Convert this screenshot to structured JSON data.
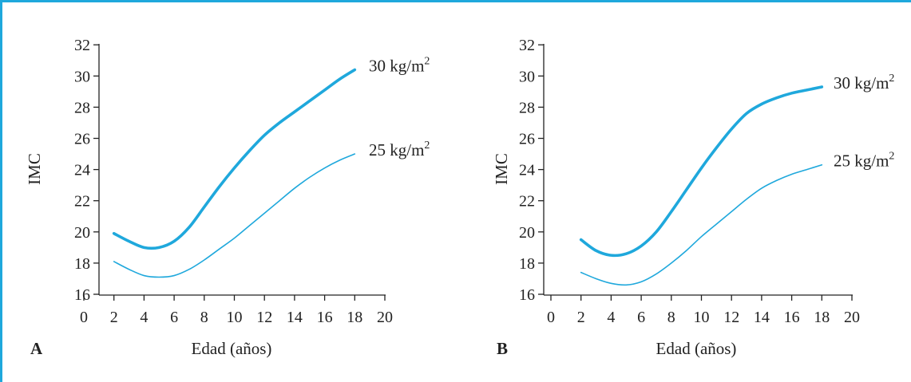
{
  "colors": {
    "frame": "#1fa8dc",
    "series": "#1fa8dc",
    "text": "#222222"
  },
  "chart_data": [
    {
      "type": "line",
      "panel": "A",
      "xlabel": "Edad (años)",
      "ylabel": "IMC",
      "xlim": [
        0,
        20
      ],
      "ylim": [
        16,
        32
      ],
      "xticks": [
        "0",
        "2",
        "4",
        "6",
        "8",
        "10",
        "12",
        "14",
        "16",
        "18",
        "20"
      ],
      "yticks": [
        "16",
        "18",
        "20",
        "22",
        "24",
        "26",
        "28",
        "30",
        "32"
      ],
      "grid": false,
      "series": [
        {
          "name": "30 kg/m2",
          "label_base": "30 kg/m",
          "label_sup": "2",
          "weight": "thick",
          "points": [
            [
              2,
              19.9
            ],
            [
              3,
              19.4
            ],
            [
              4,
              19.0
            ],
            [
              5,
              19.0
            ],
            [
              6,
              19.4
            ],
            [
              7,
              20.3
            ],
            [
              8,
              21.6
            ],
            [
              9,
              22.9
            ],
            [
              10,
              24.1
            ],
            [
              11,
              25.2
            ],
            [
              12,
              26.2
            ],
            [
              13,
              27.0
            ],
            [
              14,
              27.7
            ],
            [
              15,
              28.4
            ],
            [
              16,
              29.1
            ],
            [
              17,
              29.8
            ],
            [
              18,
              30.4
            ]
          ]
        },
        {
          "name": "25 kg/m2",
          "label_base": "25 kg/m",
          "label_sup": "2",
          "weight": "thin",
          "points": [
            [
              2,
              18.1
            ],
            [
              3,
              17.6
            ],
            [
              4,
              17.2
            ],
            [
              5,
              17.1
            ],
            [
              6,
              17.2
            ],
            [
              7,
              17.6
            ],
            [
              8,
              18.2
            ],
            [
              9,
              18.9
            ],
            [
              10,
              19.6
            ],
            [
              11,
              20.4
            ],
            [
              12,
              21.2
            ],
            [
              13,
              22.0
            ],
            [
              14,
              22.8
            ],
            [
              15,
              23.5
            ],
            [
              16,
              24.1
            ],
            [
              17,
              24.6
            ],
            [
              18,
              25.0
            ]
          ]
        }
      ]
    },
    {
      "type": "line",
      "panel": "B",
      "xlabel": "Edad (años)",
      "ylabel": "IMC",
      "xlim": [
        0,
        20
      ],
      "ylim": [
        16,
        32
      ],
      "xticks": [
        "0",
        "2",
        "4",
        "6",
        "8",
        "10",
        "12",
        "14",
        "16",
        "18",
        "20"
      ],
      "yticks": [
        "16",
        "18",
        "20",
        "22",
        "24",
        "26",
        "28",
        "30",
        "32"
      ],
      "grid": false,
      "series": [
        {
          "name": "30 kg/m2",
          "label_base": "30 kg/m",
          "label_sup": "2",
          "weight": "thick",
          "points": [
            [
              2,
              19.5
            ],
            [
              3,
              18.8
            ],
            [
              4,
              18.5
            ],
            [
              5,
              18.6
            ],
            [
              6,
              19.1
            ],
            [
              7,
              20.0
            ],
            [
              8,
              21.3
            ],
            [
              9,
              22.7
            ],
            [
              10,
              24.1
            ],
            [
              11,
              25.4
            ],
            [
              12,
              26.6
            ],
            [
              13,
              27.6
            ],
            [
              14,
              28.2
            ],
            [
              15,
              28.6
            ],
            [
              16,
              28.9
            ],
            [
              17,
              29.1
            ],
            [
              18,
              29.3
            ]
          ]
        },
        {
          "name": "25 kg/m2",
          "label_base": "25 kg/m",
          "label_sup": "2",
          "weight": "thin",
          "points": [
            [
              2,
              17.4
            ],
            [
              3,
              17.0
            ],
            [
              4,
              16.7
            ],
            [
              5,
              16.6
            ],
            [
              6,
              16.8
            ],
            [
              7,
              17.3
            ],
            [
              8,
              18.0
            ],
            [
              9,
              18.8
            ],
            [
              10,
              19.7
            ],
            [
              11,
              20.5
            ],
            [
              12,
              21.3
            ],
            [
              13,
              22.1
            ],
            [
              14,
              22.8
            ],
            [
              15,
              23.3
            ],
            [
              16,
              23.7
            ],
            [
              17,
              24.0
            ],
            [
              18,
              24.3
            ]
          ]
        }
      ]
    }
  ]
}
